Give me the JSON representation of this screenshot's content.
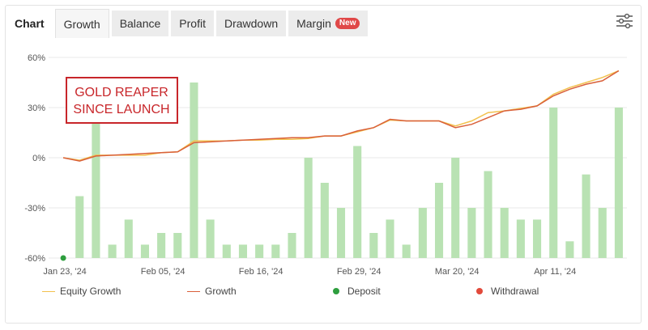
{
  "tabs": [
    {
      "label": "Chart",
      "kind": "plain"
    },
    {
      "label": "Growth",
      "kind": "active"
    },
    {
      "label": "Balance",
      "kind": "normal"
    },
    {
      "label": "Profit",
      "kind": "normal"
    },
    {
      "label": "Drawdown",
      "kind": "normal"
    },
    {
      "label": "Margin",
      "kind": "normal",
      "badge": "New"
    }
  ],
  "settings_icon": "sliders-icon",
  "annotation": {
    "line1": "GOLD REAPER",
    "line2": "SINCE LAUNCH",
    "color": "#c8262a"
  },
  "colors": {
    "bars": "#b9e2b3",
    "growth": "#d9603a",
    "equity": "#f2c14e",
    "deposit": "#2e9e3e",
    "withdrawal": "#e24a3b",
    "grid": "#e8e8e8",
    "axis_text": "#555555"
  },
  "chart_data": {
    "type": "bar+line",
    "ylim": [
      -60,
      60
    ],
    "yticks": [
      60,
      30,
      0,
      -30,
      -60
    ],
    "ytick_suffix": "%",
    "xtick_labels": [
      {
        "i": 0,
        "label": "Jan 23, '24"
      },
      {
        "i": 6,
        "label": "Feb 05, '24"
      },
      {
        "i": 12,
        "label": "Feb 16, '24"
      },
      {
        "i": 18,
        "label": "Feb 29, '24"
      },
      {
        "i": 24,
        "label": "Mar 20, '24"
      },
      {
        "i": 30,
        "label": "Apr 11, '24"
      }
    ],
    "n_points": 35,
    "bars": [
      null,
      -23,
      22,
      -52,
      -37,
      -52,
      -45,
      -45,
      45,
      -37,
      -52,
      -52,
      -52,
      -52,
      -45,
      0,
      -15,
      -30,
      7,
      -45,
      -37,
      -52,
      -30,
      -15,
      0,
      -30,
      -8,
      -30,
      -37,
      -37,
      30,
      -50,
      -10,
      -30,
      30
    ],
    "growth": [
      0,
      -2,
      1,
      1.5,
      2,
      2.5,
      3,
      3.5,
      9,
      9.5,
      10,
      10.5,
      11,
      11.5,
      12,
      12,
      13,
      13,
      16,
      18,
      23,
      22,
      22,
      22,
      18,
      20,
      24,
      28,
      29,
      31,
      37,
      41,
      44,
      46,
      52
    ],
    "equity": [
      0,
      -1.5,
      1.5,
      1.5,
      1.5,
      1.5,
      3,
      3.5,
      10,
      10,
      10,
      10.5,
      10.5,
      11,
      11,
      11.5,
      13,
      13,
      15.5,
      18,
      22.5,
      22,
      22,
      22,
      19,
      22,
      27,
      28,
      29.5,
      31,
      38,
      42,
      45,
      48,
      52
    ],
    "deposit_point": {
      "i": 0,
      "y": -60
    },
    "legend": [
      {
        "label": "Equity Growth",
        "kind": "line",
        "color": "#f2c14e"
      },
      {
        "label": "Growth",
        "kind": "line",
        "color": "#d9603a"
      },
      {
        "label": "Deposit",
        "kind": "dot",
        "color": "#2e9e3e"
      },
      {
        "label": "Withdrawal",
        "kind": "dot",
        "color": "#e24a3b"
      }
    ]
  }
}
